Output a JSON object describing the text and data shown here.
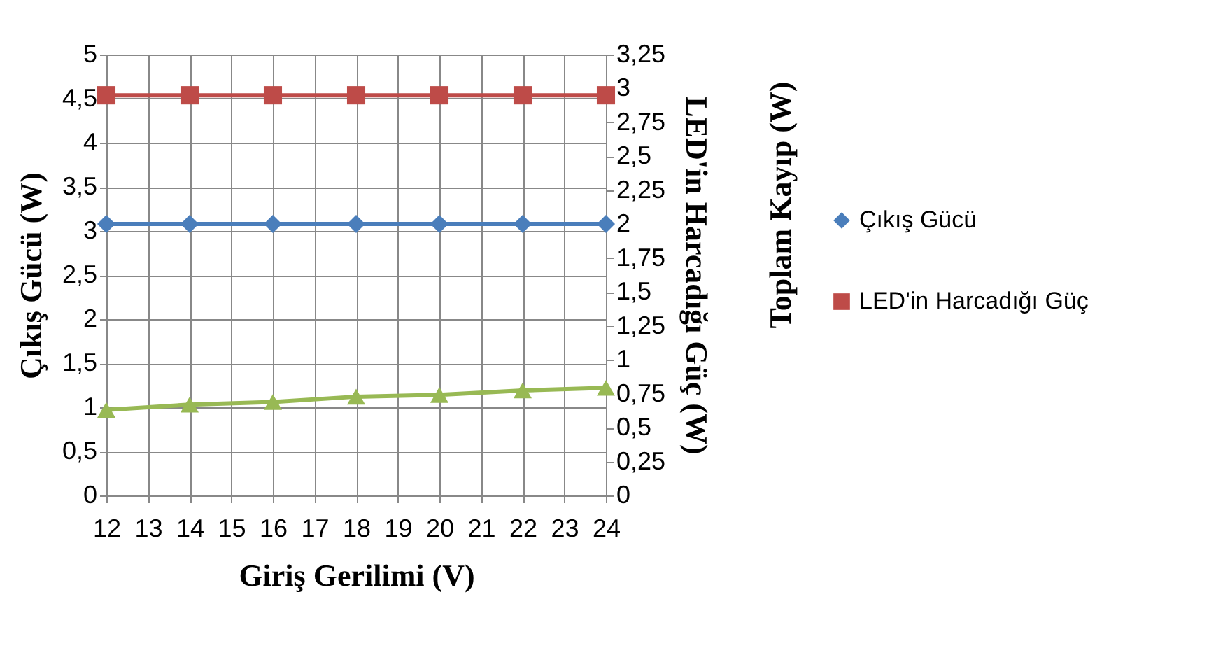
{
  "chart_data": {
    "type": "line",
    "xlabel": "Giriş Gerilimi (V)",
    "ylabel": "Çıkış Gücü (W)",
    "y2label": "LED'in Harcadığı Güç (W)",
    "y3label": "Toplam Kayıp (W)",
    "x": [
      12,
      14,
      16,
      18,
      20,
      22,
      24
    ],
    "xlim": [
      12,
      24
    ],
    "xticks": [
      12,
      13,
      14,
      15,
      16,
      17,
      18,
      19,
      20,
      21,
      22,
      23,
      24
    ],
    "ylim": [
      0,
      5
    ],
    "yticks": [
      0,
      {
        "value": 0.5,
        "label": "0,5"
      },
      1,
      {
        "value": 1.5,
        "label": "1,5"
      },
      2,
      {
        "value": 2.5,
        "label": "2,5"
      },
      3,
      {
        "value": 3.5,
        "label": "3,5"
      },
      4,
      {
        "value": 4.5,
        "label": "4,5"
      },
      5
    ],
    "y2lim": [
      0,
      3.25
    ],
    "y2ticks": [
      0,
      {
        "value": 0.25,
        "label": "0,25"
      },
      {
        "value": 0.5,
        "label": "0,5"
      },
      {
        "value": 0.75,
        "label": "0,75"
      },
      1,
      {
        "value": 1.25,
        "label": "1,25"
      },
      {
        "value": 1.5,
        "label": "1,5"
      },
      {
        "value": 1.75,
        "label": "1,75"
      },
      2,
      {
        "value": 2.25,
        "label": "2,25"
      },
      {
        "value": 2.5,
        "label": "2,5"
      },
      {
        "value": 2.75,
        "label": "2,75"
      },
      3,
      {
        "value": 3.25,
        "label": "3,25"
      }
    ],
    "series": [
      {
        "name": "Çıkış Gücü",
        "color": "#4a7ebb",
        "marker": "diamond",
        "values": [
          3.08,
          3.08,
          3.08,
          3.08,
          3.08,
          3.08,
          3.08
        ]
      },
      {
        "name": "LED'in Harcadığı Güç",
        "color": "#be4b48",
        "marker": "square",
        "axis": "y2",
        "values": [
          2.95,
          2.95,
          2.95,
          2.95,
          2.95,
          2.95,
          2.95
        ]
      },
      {
        "color": "#98b954",
        "marker": "triangle",
        "values": [
          0.97,
          1.03,
          1.06,
          1.12,
          1.14,
          1.19,
          1.22
        ]
      }
    ],
    "grid": true,
    "legend": "right",
    "line_style": "solid"
  }
}
